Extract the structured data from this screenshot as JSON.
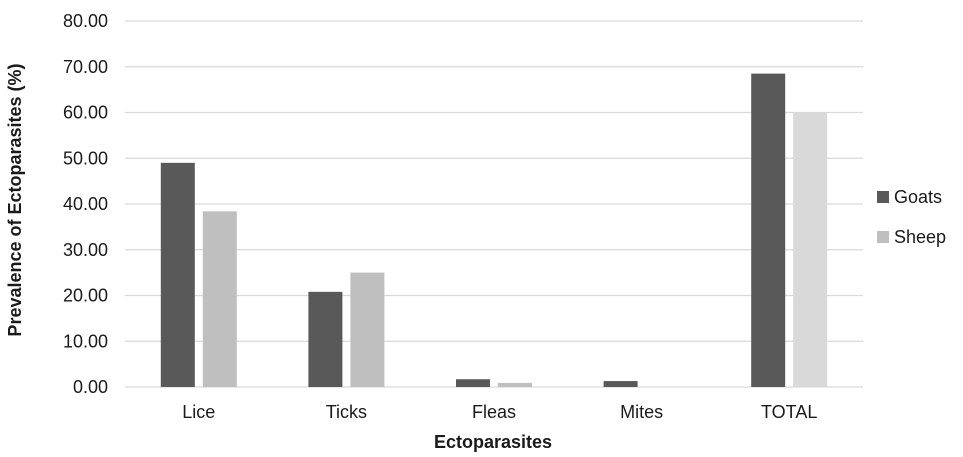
{
  "chart_data": {
    "type": "bar",
    "title": "",
    "xlabel": "Ectoparasites",
    "ylabel": "Prevalence of Ectoparasites (%)",
    "ylim": [
      0,
      80
    ],
    "yticks": [
      "0.00",
      "10.00",
      "20.00",
      "30.00",
      "40.00",
      "50.00",
      "60.00",
      "70.00",
      "80.00"
    ],
    "categories": [
      "Lice",
      "Ticks",
      "Fleas",
      "Mites",
      "TOTAL"
    ],
    "grid": true,
    "legend_position": "right",
    "series": [
      {
        "name": "Goats",
        "color": "#595959",
        "values": [
          49.0,
          20.8,
          1.7,
          1.3,
          68.5
        ]
      },
      {
        "name": "Sheep",
        "color": "#bfbfbf",
        "total_color": "#d9d9d9",
        "values": [
          38.4,
          25.0,
          0.9,
          0.0,
          60.0
        ]
      }
    ]
  }
}
